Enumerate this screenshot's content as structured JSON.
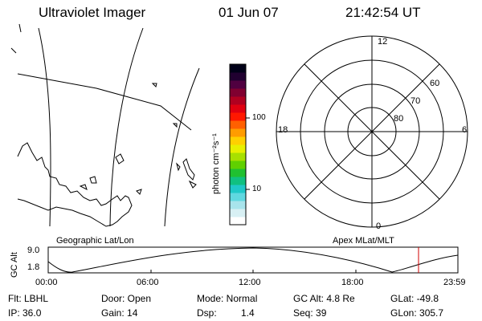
{
  "header": {
    "title": "Ultraviolet Imager",
    "date": "01 Jun 07",
    "time": "21:42:54 UT"
  },
  "colorbar": {
    "unit_label": "photon cm⁻²s⁻¹",
    "tick_100": "100",
    "tick_10": "10",
    "colors": [
      "#ffffff",
      "#d8f0f4",
      "#a8e4ec",
      "#60d8e0",
      "#20c8c8",
      "#10c080",
      "#20c030",
      "#60d000",
      "#a8e000",
      "#e8f000",
      "#ffd000",
      "#ff9c00",
      "#ff6000",
      "#ff1800",
      "#e00010",
      "#b00020",
      "#800030",
      "#500040",
      "#200030",
      "#000018"
    ]
  },
  "polar": {
    "labels": {
      "top": "12",
      "bottom": "0",
      "left": "18",
      "right": "6"
    },
    "lat_labels": [
      "60",
      "70",
      "80"
    ]
  },
  "panels": {
    "left_label": "Geographic Lat/Lon",
    "right_label": "Apex MLat/MLT"
  },
  "altitude_plot": {
    "ylabel": "GC Alt",
    "y_max_label": "9.0",
    "y_min_label": "1.8",
    "x_ticks": [
      "00:00",
      "06:00",
      "12:00",
      "18:00",
      "23:59"
    ],
    "marker_color": "#d00000"
  },
  "info": {
    "filter": "Flt: LBHL",
    "door": "Door: Open",
    "mode": "Mode: Normal",
    "gc_alt": "GC Alt: 4.8 Re",
    "glat": "GLat: -49.8",
    "ip": "IP: 36.0",
    "gain": "Gain: 14",
    "dsp_label": "Dsp:",
    "dsp_value": "1.4",
    "seq": "Seq: 39",
    "glon": "GLon: 305.7"
  }
}
